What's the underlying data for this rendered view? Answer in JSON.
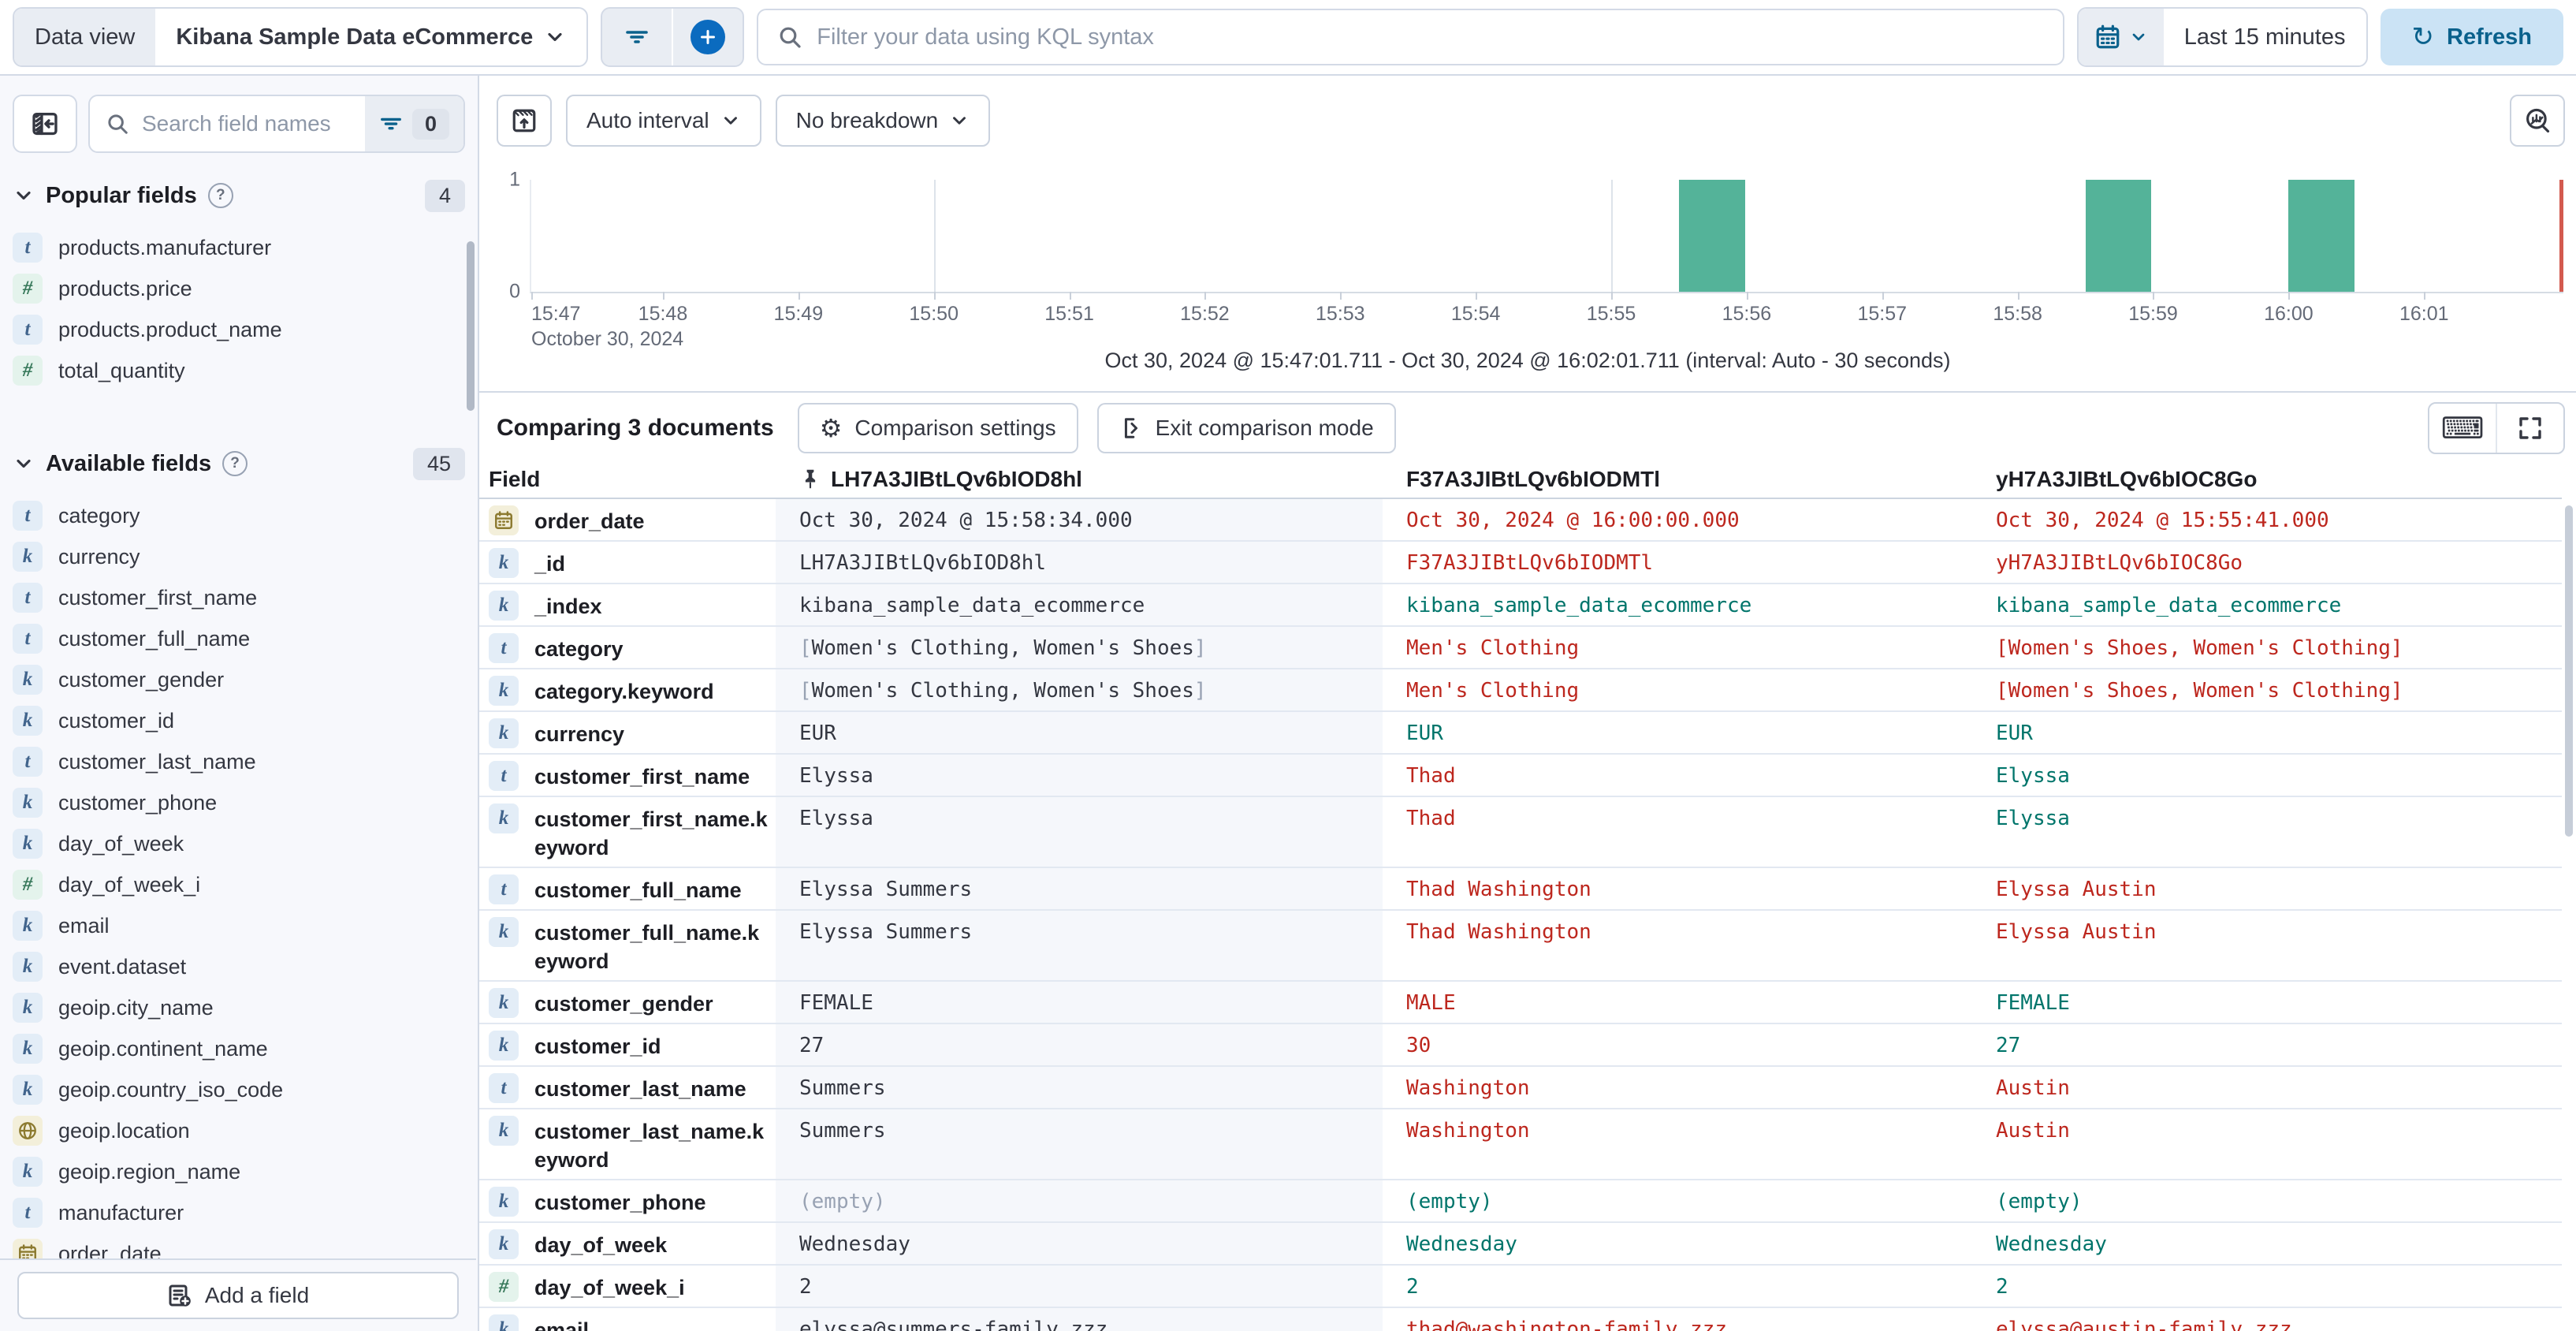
{
  "top_bar": {
    "data_view_label": "Data view",
    "data_view_value": "Kibana Sample Data eCommerce",
    "kql_placeholder": "Filter your data using KQL syntax",
    "time_range": "Last 15 minutes",
    "refresh_label": "Refresh"
  },
  "sidebar": {
    "search_placeholder": "Search field names",
    "filter_count": "0",
    "popular_title": "Popular fields",
    "popular_count": "4",
    "available_title": "Available fields",
    "available_count": "45",
    "add_field_label": "Add a field",
    "popular_items": [
      {
        "type": "t",
        "name": "products.manufacturer"
      },
      {
        "type": "num",
        "name": "products.price"
      },
      {
        "type": "t",
        "name": "products.product_name"
      },
      {
        "type": "num",
        "name": "total_quantity"
      }
    ],
    "available_items": [
      {
        "type": "t",
        "name": "category"
      },
      {
        "type": "k",
        "name": "currency"
      },
      {
        "type": "t",
        "name": "customer_first_name"
      },
      {
        "type": "t",
        "name": "customer_full_name"
      },
      {
        "type": "k",
        "name": "customer_gender"
      },
      {
        "type": "k",
        "name": "customer_id"
      },
      {
        "type": "t",
        "name": "customer_last_name"
      },
      {
        "type": "k",
        "name": "customer_phone"
      },
      {
        "type": "k",
        "name": "day_of_week"
      },
      {
        "type": "num",
        "name": "day_of_week_i"
      },
      {
        "type": "k",
        "name": "email"
      },
      {
        "type": "k",
        "name": "event.dataset"
      },
      {
        "type": "k",
        "name": "geoip.city_name"
      },
      {
        "type": "k",
        "name": "geoip.continent_name"
      },
      {
        "type": "k",
        "name": "geoip.country_iso_code"
      },
      {
        "type": "geo",
        "name": "geoip.location"
      },
      {
        "type": "k",
        "name": "geoip.region_name"
      },
      {
        "type": "t",
        "name": "manufacturer"
      },
      {
        "type": "date",
        "name": "order_date"
      }
    ]
  },
  "chart": {
    "interval_label": "Auto interval",
    "breakdown_label": "No breakdown",
    "caption": "Oct 30, 2024 @ 15:47:01.711 - Oct 30, 2024 @ 16:02:01.711 (interval: Auto - 30 seconds)"
  },
  "chart_data": {
    "type": "bar",
    "title": "",
    "xlabel": "October 30, 2024",
    "ylabel": "",
    "ylim": [
      0,
      1
    ],
    "y_ticks": [
      "1",
      "0"
    ],
    "x_ticks": [
      "15:47",
      "15:48",
      "15:49",
      "15:50",
      "15:51",
      "15:52",
      "15:53",
      "15:54",
      "15:55",
      "15:56",
      "15:57",
      "15:58",
      "15:59",
      "16:00",
      "16:01"
    ],
    "domain_start": "15:47:01.711",
    "domain_end": "16:02:01.711",
    "interval_seconds": 30,
    "bars": [
      {
        "start": "15:55:30",
        "value": 1
      },
      {
        "start": "15:58:30",
        "value": 1
      },
      {
        "start": "16:00:00",
        "value": 1
      }
    ],
    "gridlines": [
      "15:50",
      "15:55",
      "16:00"
    ],
    "bar_color": "#54B399",
    "end_marker_color": "#D35A4F",
    "legend": "off",
    "grid": "partial"
  },
  "comparison": {
    "title": "Comparing 3 documents",
    "settings_label": "Comparison settings",
    "exit_label": "Exit comparison mode"
  },
  "table": {
    "field_header": "Field",
    "pinned_column": "LH7A3JIBtLQv6bIOD8hl",
    "column_a": "F37A3JIBtLQv6bIODMTl",
    "column_b": "yH7A3JIBtLQv6bIOC8Go",
    "rows": [
      {
        "type": "date",
        "field": "order_date",
        "base": "Oct 30, 2024 @ 15:58:34.000",
        "a": {
          "text": "Oct 30, 2024 @ 16:00:00.000",
          "match": false
        },
        "b": {
          "text": "Oct 30, 2024 @ 15:55:41.000",
          "match": false
        }
      },
      {
        "type": "k",
        "field": "_id",
        "base": "LH7A3JIBtLQv6bIOD8hl",
        "a": {
          "text": "F37A3JIBtLQv6bIODMTl",
          "match": false
        },
        "b": {
          "text": "yH7A3JIBtLQv6bIOC8Go",
          "match": false
        }
      },
      {
        "type": "k",
        "field": "_index",
        "base": "kibana_sample_data_ecommerce",
        "a": {
          "text": "kibana_sample_data_ecommerce",
          "match": true
        },
        "b": {
          "text": "kibana_sample_data_ecommerce",
          "match": true
        }
      },
      {
        "type": "t",
        "field": "category",
        "base": "[Women's Clothing, Women's Shoes]",
        "a": {
          "text": "Men's Clothing",
          "match": false
        },
        "b": {
          "text": "[Women's Shoes, Women's Clothing]",
          "match": false
        }
      },
      {
        "type": "k",
        "field": "category.keyword",
        "base": "[Women's Clothing, Women's Shoes]",
        "a": {
          "text": "Men's Clothing",
          "match": false
        },
        "b": {
          "text": "[Women's Shoes, Women's Clothing]",
          "match": false
        }
      },
      {
        "type": "k",
        "field": "currency",
        "base": "EUR",
        "a": {
          "text": "EUR",
          "match": true
        },
        "b": {
          "text": "EUR",
          "match": true
        }
      },
      {
        "type": "t",
        "field": "customer_first_name",
        "base": "Elyssa",
        "a": {
          "text": "Thad",
          "match": false
        },
        "b": {
          "text": "Elyssa",
          "match": true
        }
      },
      {
        "type": "k",
        "field": "customer_first_name.keyword",
        "base": "Elyssa",
        "a": {
          "text": "Thad",
          "match": false
        },
        "b": {
          "text": "Elyssa",
          "match": true
        },
        "tall": true
      },
      {
        "type": "t",
        "field": "customer_full_name",
        "base": "Elyssa Summers",
        "a": {
          "text": "Thad Washington",
          "match": false
        },
        "b": {
          "text": "Elyssa Austin",
          "match": false
        }
      },
      {
        "type": "k",
        "field": "customer_full_name.keyword",
        "base": "Elyssa Summers",
        "a": {
          "text": "Thad Washington",
          "match": false
        },
        "b": {
          "text": "Elyssa Austin",
          "match": false
        },
        "tall": true
      },
      {
        "type": "k",
        "field": "customer_gender",
        "base": "FEMALE",
        "a": {
          "text": "MALE",
          "match": false
        },
        "b": {
          "text": "FEMALE",
          "match": true
        }
      },
      {
        "type": "k",
        "field": "customer_id",
        "base": "27",
        "a": {
          "text": "30",
          "match": false
        },
        "b": {
          "text": "27",
          "match": true
        }
      },
      {
        "type": "t",
        "field": "customer_last_name",
        "base": "Summers",
        "a": {
          "text": "Washington",
          "match": false
        },
        "b": {
          "text": "Austin",
          "match": false
        }
      },
      {
        "type": "k",
        "field": "customer_last_name.keyword",
        "base": "Summers",
        "a": {
          "text": "Washington",
          "match": false
        },
        "b": {
          "text": "Austin",
          "match": false
        },
        "tall": true
      },
      {
        "type": "k",
        "field": "customer_phone",
        "base": "(empty)",
        "a": {
          "text": "(empty)",
          "match": true
        },
        "b": {
          "text": "(empty)",
          "match": true
        }
      },
      {
        "type": "k",
        "field": "day_of_week",
        "base": "Wednesday",
        "a": {
          "text": "Wednesday",
          "match": true
        },
        "b": {
          "text": "Wednesday",
          "match": true
        }
      },
      {
        "type": "num",
        "field": "day_of_week_i",
        "base": "2",
        "a": {
          "text": "2",
          "match": true
        },
        "b": {
          "text": "2",
          "match": true
        }
      },
      {
        "type": "k",
        "field": "email",
        "base": "elyssa@summers-family.zzz",
        "a": {
          "text": "thad@washington-family.zzz",
          "match": false
        },
        "b": {
          "text": "elyssa@austin-family.zzz",
          "match": false
        }
      }
    ]
  },
  "colors": {
    "accent_blue": "#0A618C",
    "bar_green": "#54B399",
    "diff_red": "#BD271E",
    "match_teal": "#00756B",
    "marker_red": "#D35A4F"
  }
}
